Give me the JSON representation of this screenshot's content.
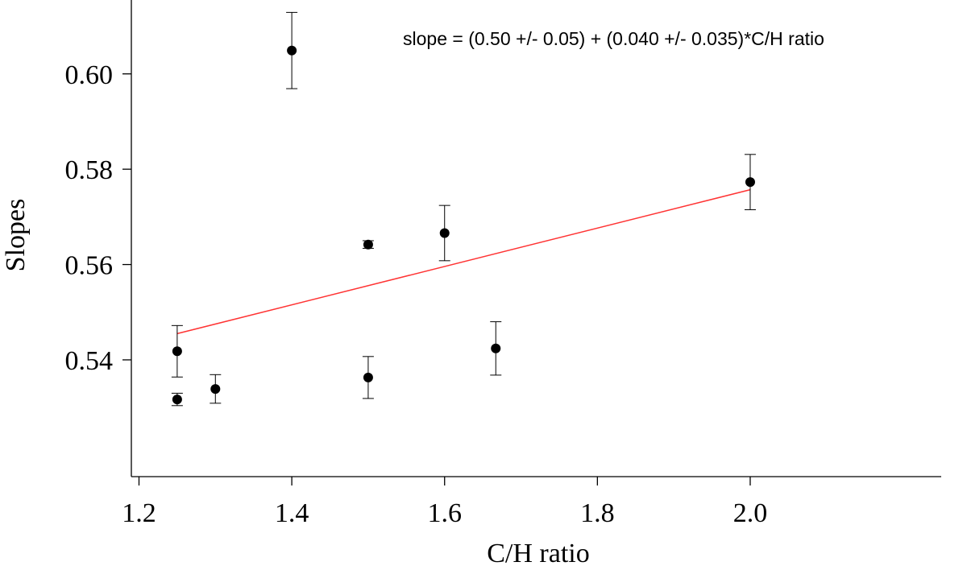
{
  "chart_data": {
    "type": "scatter",
    "title": "",
    "xlabel": "C/H ratio",
    "ylabel": "Slopes",
    "xlim": [
      1.19,
      2.25
    ],
    "ylim": [
      0.5155,
      0.6155
    ],
    "x_ticks": [
      1.2,
      1.4,
      1.6,
      1.8,
      2.0
    ],
    "x_tick_labels": [
      "1.2",
      "1.4",
      "1.6",
      "1.8",
      "2.0"
    ],
    "y_ticks": [
      0.54,
      0.56,
      0.58,
      0.6
    ],
    "y_tick_labels": [
      "0.54",
      "0.56",
      "0.58",
      "0.60"
    ],
    "grid": false,
    "series": [
      {
        "name": "Slopes",
        "points": [
          {
            "x": 1.25,
            "y": 0.5418,
            "err": 0.0054
          },
          {
            "x": 1.25,
            "y": 0.5317,
            "err": 0.0013
          },
          {
            "x": 1.3,
            "y": 0.5339,
            "err": 0.003
          },
          {
            "x": 1.4,
            "y": 0.6049,
            "err": 0.008
          },
          {
            "x": 1.5,
            "y": 0.5642,
            "err": 0.0008
          },
          {
            "x": 1.5,
            "y": 0.5363,
            "err": 0.0044
          },
          {
            "x": 1.6,
            "y": 0.5666,
            "err": 0.0058
          },
          {
            "x": 1.667,
            "y": 0.5424,
            "err": 0.0056
          },
          {
            "x": 2.0,
            "y": 0.5773,
            "err": 0.0058
          }
        ]
      }
    ],
    "fit_line": {
      "color": "#ff3333",
      "x": [
        1.25,
        2.0
      ],
      "y": [
        0.5455,
        0.5757
      ]
    },
    "annotation": "slope = (0.50 +/- 0.05) + (0.040 +/- 0.035)*C/H ratio"
  }
}
